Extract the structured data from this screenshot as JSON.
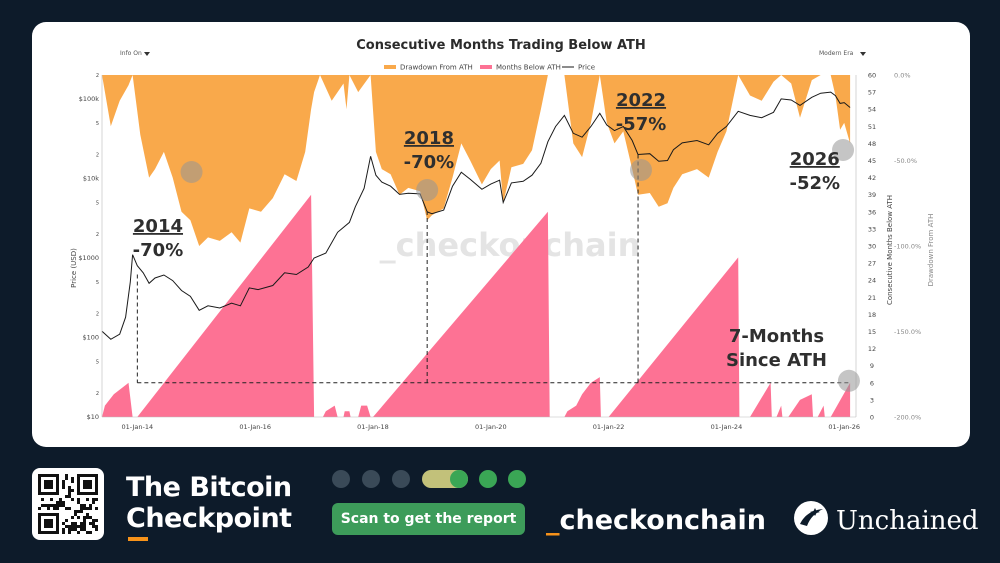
{
  "chart_data": {
    "type": "area",
    "title": "Consecutive Months Trading Below ATH",
    "controls": {
      "left_dropdown": "Info On",
      "right_dropdown": "Modern Era"
    },
    "legend": [
      "Drawdown From ATH",
      "Months Below ATH",
      "Price"
    ],
    "legend_position": "top-center",
    "colors": {
      "drawdown": "#f9a94b",
      "months": "#fd7294",
      "price": "#1a1a1a",
      "annotation": "#2f2f2f"
    },
    "xlabel": "",
    "ylabel_left": "Price (USD)",
    "ylabel_right_inner": "Consecutive Months Below ATH",
    "ylabel_right_outer": "Drawdown From ATH",
    "x_tick_labels": [
      "01-Jan-14",
      "01-Jan-16",
      "01-Jan-18",
      "01-Jan-20",
      "01-Jan-22",
      "01-Jan-24",
      "01-Jan-26"
    ],
    "x_range": [
      2013.4,
      2026.2
    ],
    "price_scale": "log",
    "price_range": [
      10,
      200000
    ],
    "price_tick_labels": [
      {
        "v": 10,
        "label": "$10"
      },
      {
        "v": 20,
        "label": "2"
      },
      {
        "v": 50,
        "label": "5"
      },
      {
        "v": 100,
        "label": "$100"
      },
      {
        "v": 200,
        "label": "2"
      },
      {
        "v": 500,
        "label": "5"
      },
      {
        "v": 1000,
        "label": "$1000"
      },
      {
        "v": 2000,
        "label": "2"
      },
      {
        "v": 5000,
        "label": "5"
      },
      {
        "v": 10000,
        "label": "$10k"
      },
      {
        "v": 20000,
        "label": "2"
      },
      {
        "v": 50000,
        "label": "5"
      },
      {
        "v": 100000,
        "label": "$100k"
      },
      {
        "v": 200000,
        "label": "2"
      }
    ],
    "months_range": [
      0,
      60
    ],
    "months_ticks": [
      0,
      3,
      6,
      9,
      12,
      15,
      18,
      21,
      24,
      27,
      30,
      33,
      36,
      39,
      42,
      45,
      48,
      51,
      54,
      57,
      60
    ],
    "drawdown_range": [
      -200,
      0
    ],
    "drawdown_tick_labels": [
      {
        "v": 0,
        "label": "0.0%"
      },
      {
        "v": -50,
        "label": "-50.0%"
      },
      {
        "v": -100,
        "label": "-100.0%"
      },
      {
        "v": -150,
        "label": "-150.0%"
      },
      {
        "v": -200,
        "label": "-200.0%"
      }
    ],
    "price_series": [
      [
        2013.4,
        120
      ],
      [
        2013.55,
        95
      ],
      [
        2013.7,
        110
      ],
      [
        2013.8,
        180
      ],
      [
        2013.88,
        500
      ],
      [
        2013.92,
        1100
      ],
      [
        2014.0,
        800
      ],
      [
        2014.1,
        650
      ],
      [
        2014.2,
        480
      ],
      [
        2014.3,
        560
      ],
      [
        2014.45,
        610
      ],
      [
        2014.6,
        520
      ],
      [
        2014.75,
        390
      ],
      [
        2014.9,
        330
      ],
      [
        2015.05,
        220
      ],
      [
        2015.2,
        250
      ],
      [
        2015.4,
        235
      ],
      [
        2015.6,
        270
      ],
      [
        2015.75,
        250
      ],
      [
        2015.9,
        420
      ],
      [
        2016.05,
        400
      ],
      [
        2016.3,
        450
      ],
      [
        2016.5,
        650
      ],
      [
        2016.7,
        620
      ],
      [
        2016.9,
        770
      ],
      [
        2017.0,
        1000
      ],
      [
        2017.2,
        1150
      ],
      [
        2017.4,
        2100
      ],
      [
        2017.6,
        2800
      ],
      [
        2017.7,
        4400
      ],
      [
        2017.85,
        7500
      ],
      [
        2017.96,
        19000
      ],
      [
        2018.05,
        11000
      ],
      [
        2018.15,
        9000
      ],
      [
        2018.3,
        8000
      ],
      [
        2018.45,
        6300
      ],
      [
        2018.6,
        6500
      ],
      [
        2018.8,
        6400
      ],
      [
        2018.92,
        3800
      ],
      [
        2019.0,
        3600
      ],
      [
        2019.2,
        4000
      ],
      [
        2019.35,
        8000
      ],
      [
        2019.5,
        12000
      ],
      [
        2019.65,
        9800
      ],
      [
        2019.85,
        7300
      ],
      [
        2020.0,
        8500
      ],
      [
        2020.15,
        9500
      ],
      [
        2020.21,
        5000
      ],
      [
        2020.35,
        8800
      ],
      [
        2020.55,
        9200
      ],
      [
        2020.7,
        11000
      ],
      [
        2020.85,
        15500
      ],
      [
        2020.97,
        29000
      ],
      [
        2021.1,
        45000
      ],
      [
        2021.25,
        62000
      ],
      [
        2021.4,
        37000
      ],
      [
        2021.55,
        33000
      ],
      [
        2021.7,
        45000
      ],
      [
        2021.85,
        66000
      ],
      [
        2021.97,
        47000
      ],
      [
        2022.1,
        40000
      ],
      [
        2022.25,
        45000
      ],
      [
        2022.4,
        30000
      ],
      [
        2022.5,
        20000
      ],
      [
        2022.7,
        20500
      ],
      [
        2022.85,
        16500
      ],
      [
        2023.0,
        16800
      ],
      [
        2023.1,
        23000
      ],
      [
        2023.25,
        28000
      ],
      [
        2023.5,
        30000
      ],
      [
        2023.7,
        26500
      ],
      [
        2023.85,
        37000
      ],
      [
        2024.0,
        45000
      ],
      [
        2024.2,
        70000
      ],
      [
        2024.4,
        62000
      ],
      [
        2024.6,
        58000
      ],
      [
        2024.8,
        68000
      ],
      [
        2024.93,
        100000
      ],
      [
        2025.1,
        97000
      ],
      [
        2025.25,
        83000
      ],
      [
        2025.45,
        105000
      ],
      [
        2025.6,
        118000
      ],
      [
        2025.77,
        122000
      ],
      [
        2025.85,
        110000
      ],
      [
        2025.93,
        88000
      ],
      [
        2026.0,
        90000
      ],
      [
        2026.1,
        78000
      ]
    ],
    "drawdown_series": [
      [
        2013.4,
        0
      ],
      [
        2013.55,
        -30
      ],
      [
        2013.7,
        -15
      ],
      [
        2013.85,
        -6
      ],
      [
        2013.92,
        0
      ],
      [
        2014.05,
        -35
      ],
      [
        2014.2,
        -60
      ],
      [
        2014.3,
        -55
      ],
      [
        2014.45,
        -45
      ],
      [
        2014.6,
        -60
      ],
      [
        2014.75,
        -80
      ],
      [
        2014.9,
        -85
      ],
      [
        2015.05,
        -100
      ],
      [
        2015.2,
        -95
      ],
      [
        2015.4,
        -97
      ],
      [
        2015.6,
        -92
      ],
      [
        2015.75,
        -98
      ],
      [
        2015.9,
        -78
      ],
      [
        2016.1,
        -80
      ],
      [
        2016.3,
        -72
      ],
      [
        2016.5,
        -58
      ],
      [
        2016.7,
        -62
      ],
      [
        2016.85,
        -45
      ],
      [
        2016.95,
        -20
      ],
      [
        2017.0,
        -10
      ],
      [
        2017.1,
        0
      ],
      [
        2017.3,
        -15
      ],
      [
        2017.5,
        -5
      ],
      [
        2017.55,
        -20
      ],
      [
        2017.6,
        0
      ],
      [
        2017.75,
        -10
      ],
      [
        2017.96,
        0
      ],
      [
        2018.05,
        -45
      ],
      [
        2018.15,
        -55
      ],
      [
        2018.3,
        -58
      ],
      [
        2018.45,
        -70
      ],
      [
        2018.6,
        -66
      ],
      [
        2018.8,
        -68
      ],
      [
        2018.92,
        -85
      ],
      [
        2019.0,
        -82
      ],
      [
        2019.2,
        -78
      ],
      [
        2019.35,
        -60
      ],
      [
        2019.5,
        -40
      ],
      [
        2019.65,
        -50
      ],
      [
        2019.85,
        -64
      ],
      [
        2020.0,
        -55
      ],
      [
        2020.15,
        -50
      ],
      [
        2020.21,
        -75
      ],
      [
        2020.35,
        -54
      ],
      [
        2020.55,
        -52
      ],
      [
        2020.7,
        -44
      ],
      [
        2020.85,
        -20
      ],
      [
        2020.97,
        0
      ],
      [
        2021.1,
        0
      ],
      [
        2021.25,
        0
      ],
      [
        2021.4,
        -40
      ],
      [
        2021.55,
        -48
      ],
      [
        2021.7,
        -28
      ],
      [
        2021.85,
        0
      ],
      [
        2021.97,
        -28
      ],
      [
        2022.1,
        -40
      ],
      [
        2022.25,
        -33
      ],
      [
        2022.4,
        -55
      ],
      [
        2022.5,
        -70
      ],
      [
        2022.7,
        -69
      ],
      [
        2022.85,
        -77
      ],
      [
        2023.0,
        -75
      ],
      [
        2023.1,
        -66
      ],
      [
        2023.25,
        -58
      ],
      [
        2023.5,
        -55
      ],
      [
        2023.7,
        -60
      ],
      [
        2023.85,
        -45
      ],
      [
        2024.0,
        -33
      ],
      [
        2024.2,
        0
      ],
      [
        2024.4,
        -12
      ],
      [
        2024.6,
        -15
      ],
      [
        2024.8,
        -4
      ],
      [
        2024.93,
        0
      ],
      [
        2025.1,
        -5
      ],
      [
        2025.25,
        -25
      ],
      [
        2025.45,
        -3
      ],
      [
        2025.6,
        0
      ],
      [
        2025.77,
        0
      ],
      [
        2025.85,
        -12
      ],
      [
        2025.93,
        -32
      ],
      [
        2026.0,
        -28
      ],
      [
        2026.1,
        -40
      ]
    ],
    "months_below_ath_series": [
      [
        2013.4,
        0
      ],
      [
        2013.45,
        2
      ],
      [
        2013.6,
        4
      ],
      [
        2013.85,
        6
      ],
      [
        2013.92,
        0
      ],
      [
        2014.0,
        0
      ],
      [
        2016.95,
        39
      ],
      [
        2017.0,
        0
      ],
      [
        2017.15,
        0
      ],
      [
        2017.2,
        1
      ],
      [
        2017.35,
        2
      ],
      [
        2017.4,
        0
      ],
      [
        2017.5,
        0
      ],
      [
        2017.52,
        1
      ],
      [
        2017.6,
        1
      ],
      [
        2017.62,
        0
      ],
      [
        2017.75,
        0
      ],
      [
        2017.8,
        2
      ],
      [
        2017.9,
        2
      ],
      [
        2017.96,
        0
      ],
      [
        2018.0,
        0
      ],
      [
        2020.97,
        36
      ],
      [
        2021.0,
        0
      ],
      [
        2021.25,
        0
      ],
      [
        2021.3,
        1
      ],
      [
        2021.45,
        2
      ],
      [
        2021.55,
        4
      ],
      [
        2021.7,
        6
      ],
      [
        2021.85,
        7
      ],
      [
        2021.87,
        0
      ],
      [
        2022.0,
        0
      ],
      [
        2024.2,
        28
      ],
      [
        2024.22,
        0
      ],
      [
        2024.4,
        0
      ],
      [
        2024.75,
        6
      ],
      [
        2024.77,
        0
      ],
      [
        2024.85,
        0
      ],
      [
        2024.93,
        2
      ],
      [
        2024.95,
        0
      ],
      [
        2025.05,
        0
      ],
      [
        2025.25,
        3
      ],
      [
        2025.45,
        4
      ],
      [
        2025.47,
        0
      ],
      [
        2025.55,
        0
      ],
      [
        2025.65,
        2
      ],
      [
        2025.67,
        0
      ],
      [
        2025.77,
        0
      ],
      [
        2026.1,
        6
      ]
    ],
    "annotations": [
      {
        "year": "2014",
        "value": "-70%"
      },
      {
        "year": "2018",
        "value": "-70%"
      },
      {
        "year": "2022",
        "value": "-57%"
      },
      {
        "year": "2026",
        "value": "-52%"
      },
      {
        "year": "7-Months",
        "value": "Since ATH"
      }
    ],
    "watermark": "_checkonchain"
  },
  "footer": {
    "brand_line1": "The Bitcoin",
    "brand_line2": "Checkpoint",
    "scan_button": "Scan to get the report",
    "checkonchain_prefix": "_",
    "checkonchain_name": "checkonchain",
    "unchained": "Unchained",
    "dot_colors": [
      "#3a4a58",
      "#3a4a58",
      "#3a4a58",
      "#3aa655",
      "#3aa655"
    ]
  }
}
